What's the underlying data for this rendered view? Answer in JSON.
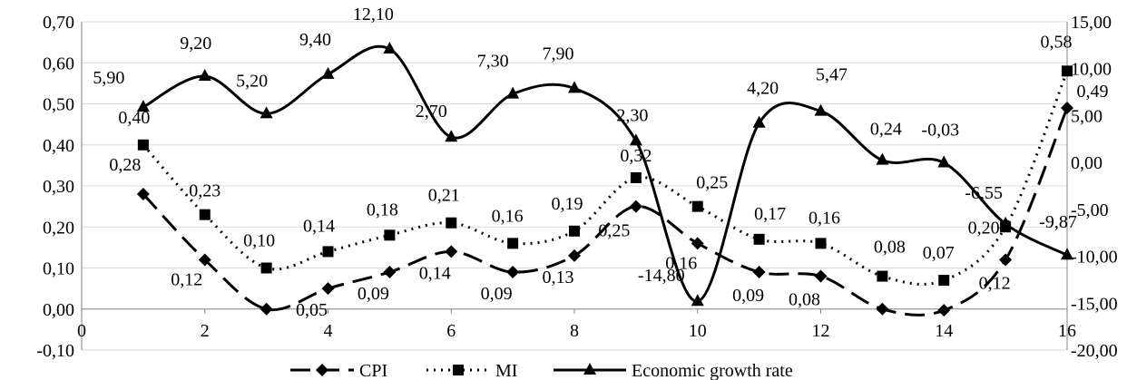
{
  "chart_data": {
    "type": "line",
    "title": "",
    "xlabel": "",
    "ylabel": "",
    "y2label": "",
    "x": [
      1,
      2,
      3,
      4,
      5,
      6,
      7,
      8,
      9,
      10,
      11,
      12,
      13,
      14,
      15,
      16
    ],
    "xlim": [
      0,
      16
    ],
    "xticks": [
      "0",
      "2",
      "4",
      "6",
      "8",
      "10",
      "12",
      "14",
      "16"
    ],
    "ylim": [
      -0.1,
      0.7
    ],
    "yticks": [
      "-0,10",
      "0,00",
      "0,10",
      "0,20",
      "0,30",
      "0,40",
      "0,50",
      "0,60",
      "0,70"
    ],
    "y2lim": [
      -20,
      15
    ],
    "y2ticks": [
      "-20,00",
      "-15,00",
      "-10,00",
      "-5,00",
      "0,00",
      "5,00",
      "10,00",
      "15,00"
    ],
    "grid": "horizontal",
    "legend": "bottom",
    "series": [
      {
        "name": "CPI",
        "axis": "left",
        "style": "dashed",
        "marker": "diamond",
        "color": "#000000",
        "values": [
          0.28,
          0.12,
          0.0,
          0.05,
          0.09,
          0.14,
          0.09,
          0.13,
          0.25,
          0.16,
          0.09,
          0.08,
          0.0,
          -0.003,
          0.12,
          0.49
        ],
        "labels": [
          "0,28",
          "0,12",
          "",
          "0,05",
          "0,09",
          "0,14",
          "0,09",
          "0,13",
          "0,25",
          "0,16",
          "0,09",
          "0,08",
          "",
          "",
          "0,12",
          "0,49"
        ]
      },
      {
        "name": "MI",
        "axis": "left",
        "style": "dotted",
        "marker": "square",
        "color": "#000000",
        "values": [
          0.4,
          0.23,
          0.1,
          0.14,
          0.18,
          0.21,
          0.16,
          0.19,
          0.32,
          0.25,
          0.17,
          0.16,
          0.08,
          0.07,
          0.2,
          0.58
        ],
        "labels": [
          "0,40",
          "0,23",
          "0,10",
          "0,14",
          "0,18",
          "0,21",
          "0,16",
          "0,19",
          "0,32",
          "0,25",
          "0,17",
          "0,16",
          "0,08",
          "0,07",
          "0,20",
          "0,58"
        ]
      },
      {
        "name": "Economic growth rate",
        "axis": "right",
        "style": "solid",
        "marker": "triangle",
        "color": "#000000",
        "values": [
          5.9,
          9.2,
          5.2,
          9.4,
          12.1,
          2.7,
          7.3,
          7.9,
          2.3,
          -14.8,
          4.2,
          5.47,
          0.24,
          -0.03,
          -6.55,
          -9.87
        ],
        "labels": [
          "5,90",
          "9,20",
          "5,20",
          "9,40",
          "12,10",
          "2,70",
          "7,30",
          "7,90",
          "2,30",
          "-14,80",
          "4,20",
          "5,47",
          "0,24",
          "-0,03",
          "-6,55",
          "-9,87"
        ]
      }
    ]
  }
}
